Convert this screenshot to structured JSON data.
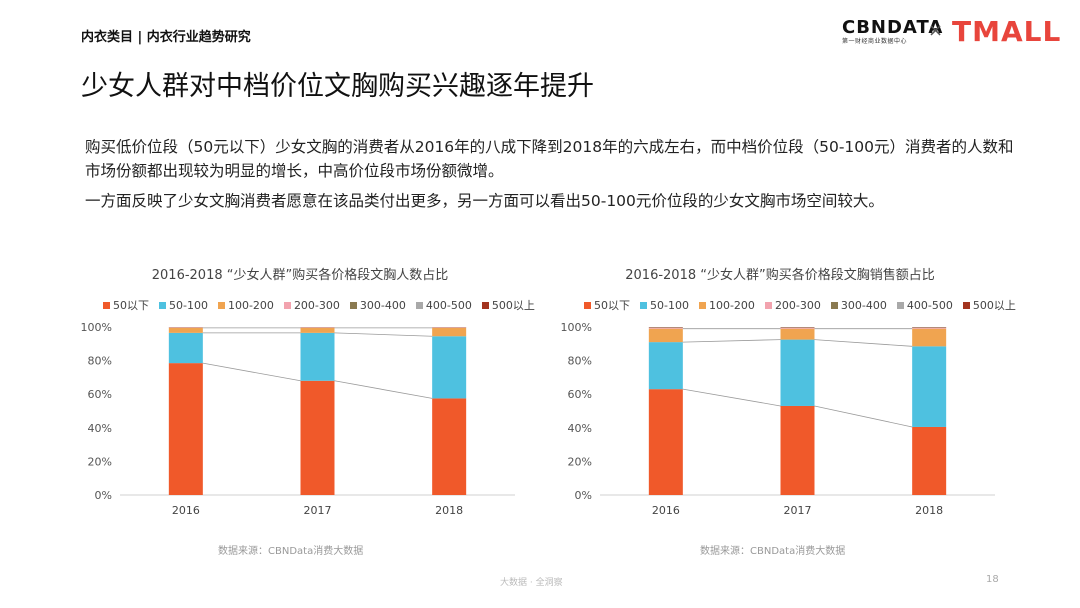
{
  "header": {
    "category": "内衣类目 | 内衣行业趋势研究",
    "logo_cbn": "CBNDATA",
    "logo_cbn_sub": "第一财经商业数据中心",
    "logo_x": "×",
    "logo_tmall": "TMALL"
  },
  "title": "少女人群对中档价位文胸购买兴趣逐年提升",
  "paragraphs": [
    "购买低价位段（50元以下）少女文胸的消费者从2016年的八成下降到2018年的六成左右，而中档价位段（50-100元）消费者的人数和市场份额都出现较为明显的增长，中高价位段市场份额微增。",
    "一方面反映了少女文胸消费者愿意在该品类付出更多，另一方面可以看出50-100元价位段的少女文胸市场空间较大。"
  ],
  "colors": {
    "s50below": "#f0592a",
    "s50_100": "#4ec1e0",
    "s100_200": "#f0a450",
    "s200_300": "#f2a3ae",
    "s300_400": "#8a7a50",
    "s400_500": "#a9a9a9",
    "s500above": "#a3341f"
  },
  "chart_data": [
    {
      "type": "bar",
      "stacked": true,
      "title": "2016-2018 “少女人群”购买各价格段文胸人数占比",
      "categories": [
        "2016",
        "2017",
        "2018"
      ],
      "y_ticks": [
        "0%",
        "20%",
        "40%",
        "60%",
        "80%",
        "100%"
      ],
      "ylim": [
        0,
        100
      ],
      "series": [
        {
          "name": "50以下",
          "values": [
            78.5,
            68,
            57.5
          ]
        },
        {
          "name": "50-100",
          "values": [
            18,
            28.5,
            37
          ]
        },
        {
          "name": "100-200",
          "values": [
            3,
            3,
            5
          ]
        },
        {
          "name": "200-300",
          "values": [
            0.2,
            0.2,
            0.2
          ]
        },
        {
          "name": "300-400",
          "values": [
            0.1,
            0.1,
            0.1
          ]
        },
        {
          "name": "400-500",
          "values": [
            0.1,
            0.1,
            0.1
          ]
        },
        {
          "name": "500以上",
          "values": [
            0.1,
            0.1,
            0.1
          ]
        }
      ],
      "source": "数据来源：CBNData消费大数据"
    },
    {
      "type": "bar",
      "stacked": true,
      "title": "2016-2018 “少女人群”购买各价格段文胸销售额占比",
      "categories": [
        "2016",
        "2017",
        "2018"
      ],
      "y_ticks": [
        "0%",
        "20%",
        "40%",
        "60%",
        "80%",
        "100%"
      ],
      "ylim": [
        0,
        100
      ],
      "series": [
        {
          "name": "50以下",
          "values": [
            63,
            53,
            40.5
          ]
        },
        {
          "name": "50-100",
          "values": [
            28,
            39.5,
            48
          ]
        },
        {
          "name": "100-200",
          "values": [
            8,
            6.5,
            10.5
          ]
        },
        {
          "name": "200-300",
          "values": [
            0.4,
            0.4,
            0.4
          ]
        },
        {
          "name": "300-400",
          "values": [
            0.2,
            0.2,
            0.2
          ]
        },
        {
          "name": "400-500",
          "values": [
            0.2,
            0.2,
            0.2
          ]
        },
        {
          "name": "500以上",
          "values": [
            0.2,
            0.2,
            0.2
          ]
        }
      ],
      "source": "数据来源：CBNData消费大数据"
    }
  ],
  "footer": "大数据 · 全洞察",
  "page_number": "18"
}
